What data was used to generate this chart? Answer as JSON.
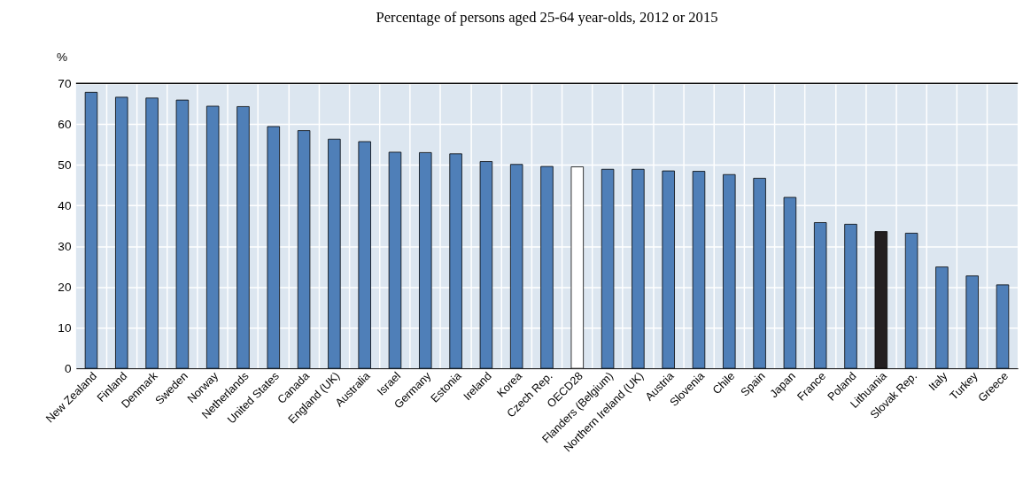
{
  "chart_data": {
    "type": "bar",
    "title": "Percentage of persons aged 25-64 year-olds, 2012 or 2015",
    "ylabel": "%",
    "categories": [
      "New Zealand",
      "Finland",
      "Denmark",
      "Sweden",
      "Norway",
      "Netherlands",
      "United States",
      "Canada",
      "England (UK)",
      "Australia",
      "Israel",
      "Germany",
      "Estonia",
      "Ireland",
      "Korea",
      "Czech Rep.",
      "OECD28",
      "Flanders (Belgium)",
      "Northern Ireland (UK)",
      "Austria",
      "Slovenia",
      "Chile",
      "Spain",
      "Japan",
      "France",
      "Poland",
      "Lithuania",
      "Slovak Rep.",
      "Italy",
      "Turkey",
      "Greece"
    ],
    "values": [
      67.8,
      66.6,
      66.4,
      65.9,
      64.4,
      64.3,
      59.4,
      58.4,
      56.3,
      55.7,
      53.1,
      53.0,
      52.7,
      50.8,
      50.1,
      49.6,
      49.5,
      48.9,
      48.9,
      48.5,
      48.4,
      47.6,
      46.7,
      42.0,
      35.8,
      35.4,
      33.6,
      33.2,
      24.9,
      22.7,
      20.5
    ],
    "colors": [
      "#4f7fb8",
      "#4f7fb8",
      "#4f7fb8",
      "#4f7fb8",
      "#4f7fb8",
      "#4f7fb8",
      "#4f7fb8",
      "#4f7fb8",
      "#4f7fb8",
      "#4f7fb8",
      "#4f7fb8",
      "#4f7fb8",
      "#4f7fb8",
      "#4f7fb8",
      "#4f7fb8",
      "#4f7fb8",
      "#ffffff",
      "#4f7fb8",
      "#4f7fb8",
      "#4f7fb8",
      "#4f7fb8",
      "#4f7fb8",
      "#4f7fb8",
      "#4f7fb8",
      "#4f7fb8",
      "#4f7fb8",
      "#231f20",
      "#4f7fb8",
      "#4f7fb8",
      "#4f7fb8",
      "#4f7fb8"
    ],
    "ylim": [
      0,
      70
    ],
    "yticks": [
      0,
      10,
      20,
      30,
      40,
      50,
      60,
      70
    ],
    "grid": true
  }
}
